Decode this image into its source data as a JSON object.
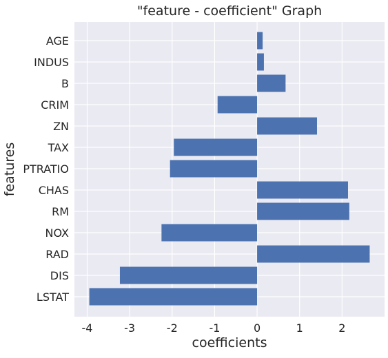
{
  "chart_data": {
    "type": "bar",
    "orientation": "horizontal",
    "title": "\"feature - coefficient\" Graph",
    "xlabel": "coefficients",
    "ylabel": "features",
    "xlim": [
      -4.3,
      3.0
    ],
    "xticks": [
      -4,
      -3,
      -2,
      -1,
      0,
      1,
      2
    ],
    "grid": true,
    "categories": [
      "AGE",
      "INDUS",
      "B",
      "CRIM",
      "ZN",
      "TAX",
      "PTRATIO",
      "CHAS",
      "RM",
      "NOX",
      "RAD",
      "DIS",
      "LSTAT"
    ],
    "values": [
      0.13,
      0.16,
      0.67,
      -0.93,
      1.41,
      -1.96,
      -2.05,
      2.14,
      2.17,
      -2.25,
      2.65,
      -3.23,
      -3.95
    ],
    "colors": {
      "bar": "#4c72b0",
      "plot_background": "#eaeaf2",
      "grid": "#ffffff",
      "text": "#262626"
    }
  }
}
